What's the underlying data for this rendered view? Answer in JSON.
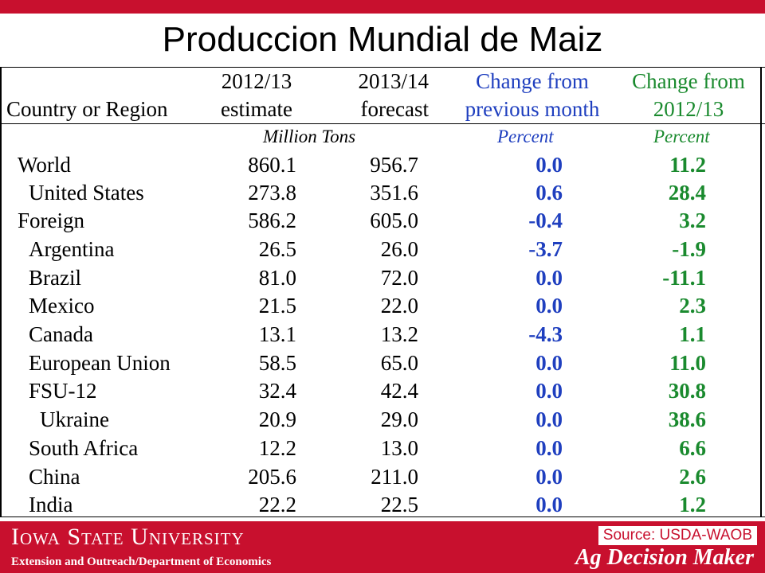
{
  "slide": {
    "title": "Produccion Mundial de Maiz"
  },
  "table": {
    "headers": {
      "country": "Country or Region",
      "col1_line1": "2012/13",
      "col1_line2": "estimate",
      "col2_line1": "2013/14",
      "col2_line2": "forecast",
      "col3_line1": "Change from",
      "col3_line2": "previous month",
      "col4_line1": "Change from",
      "col4_line2": "2012/13"
    },
    "units": {
      "tons": "Million Tons",
      "pct1": "Percent",
      "pct2": "Percent"
    },
    "rows": [
      {
        "name": "World",
        "est": "860.1",
        "fcst": "956.7",
        "chg_month": "0.0",
        "chg_year": "11.2"
      },
      {
        "name": "United States",
        "est": "273.8",
        "fcst": "351.6",
        "chg_month": "0.6",
        "chg_year": "28.4"
      },
      {
        "name": "Foreign",
        "est": "586.2",
        "fcst": "605.0",
        "chg_month": "-0.4",
        "chg_year": "3.2"
      },
      {
        "name": "Argentina",
        "est": "26.5",
        "fcst": "26.0",
        "chg_month": "-3.7",
        "chg_year": "-1.9"
      },
      {
        "name": "Brazil",
        "est": "81.0",
        "fcst": "72.0",
        "chg_month": "0.0",
        "chg_year": "-11.1"
      },
      {
        "name": "Mexico",
        "est": "21.5",
        "fcst": "22.0",
        "chg_month": "0.0",
        "chg_year": "2.3"
      },
      {
        "name": "Canada",
        "est": "13.1",
        "fcst": "13.2",
        "chg_month": "-4.3",
        "chg_year": "1.1"
      },
      {
        "name": "European Union",
        "est": "58.5",
        "fcst": "65.0",
        "chg_month": "0.0",
        "chg_year": "11.0"
      },
      {
        "name": "FSU-12",
        "est": "32.4",
        "fcst": "42.4",
        "chg_month": "0.0",
        "chg_year": "30.8"
      },
      {
        "name": "Ukraine",
        "est": "20.9",
        "fcst": "29.0",
        "chg_month": "0.0",
        "chg_year": "38.6"
      },
      {
        "name": "South Africa",
        "est": "12.2",
        "fcst": "13.0",
        "chg_month": "0.0",
        "chg_year": "6.6"
      },
      {
        "name": "China",
        "est": "205.6",
        "fcst": "211.0",
        "chg_month": "0.0",
        "chg_year": "2.6"
      },
      {
        "name": "India",
        "est": "22.2",
        "fcst": "22.5",
        "chg_month": "0.0",
        "chg_year": "1.2"
      }
    ]
  },
  "footer": {
    "university": "Iowa State University",
    "department": "Extension and Outreach/Department  of Economics",
    "source": "Source: USDA-WAOB",
    "brand": "Ag Decision Maker"
  },
  "colors": {
    "brand_red": "#c8102e",
    "change_blue": "#1f3fbf",
    "change_green": "#1a8a2e"
  }
}
